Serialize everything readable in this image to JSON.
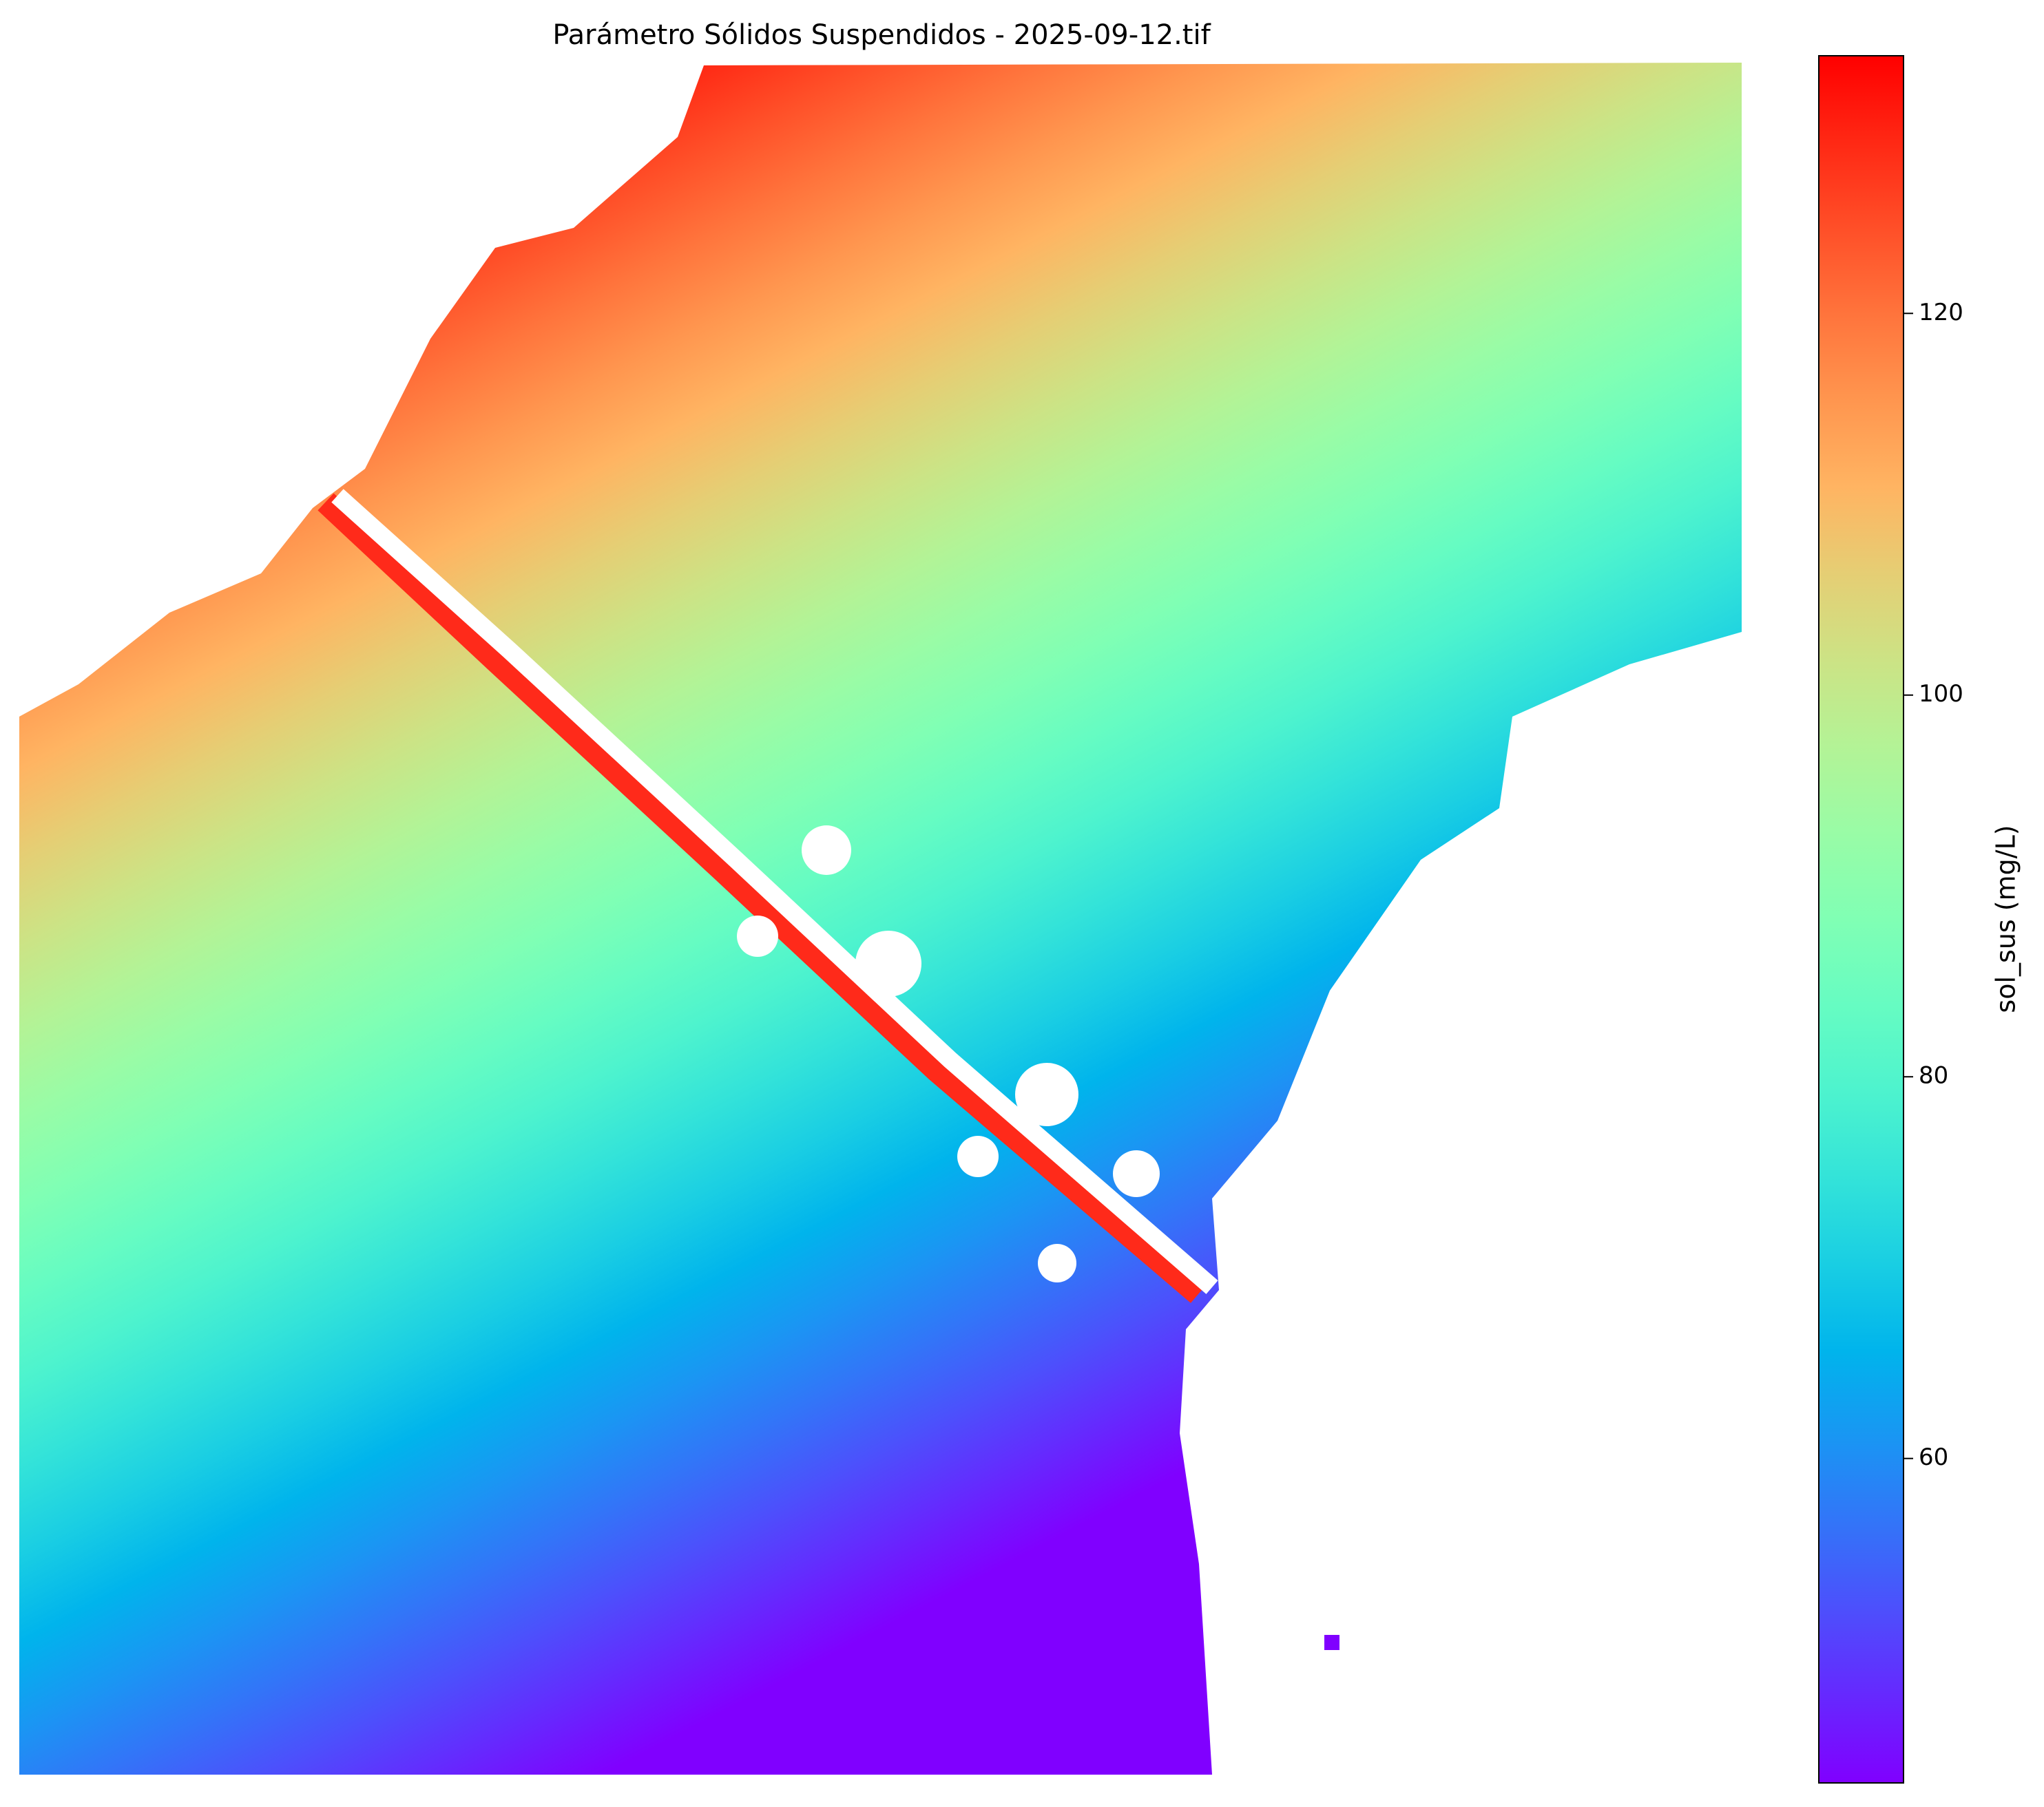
{
  "chart_data": {
    "type": "raster",
    "title": "Parámetro Sólidos Suspendidos - 2025-09-12.tif",
    "colormap": "rainbow",
    "colorbar_label": "sol_sus (mg/L)",
    "clim": [
      43,
      133.5
    ],
    "cticks": [
      60,
      80,
      100,
      120
    ]
  }
}
